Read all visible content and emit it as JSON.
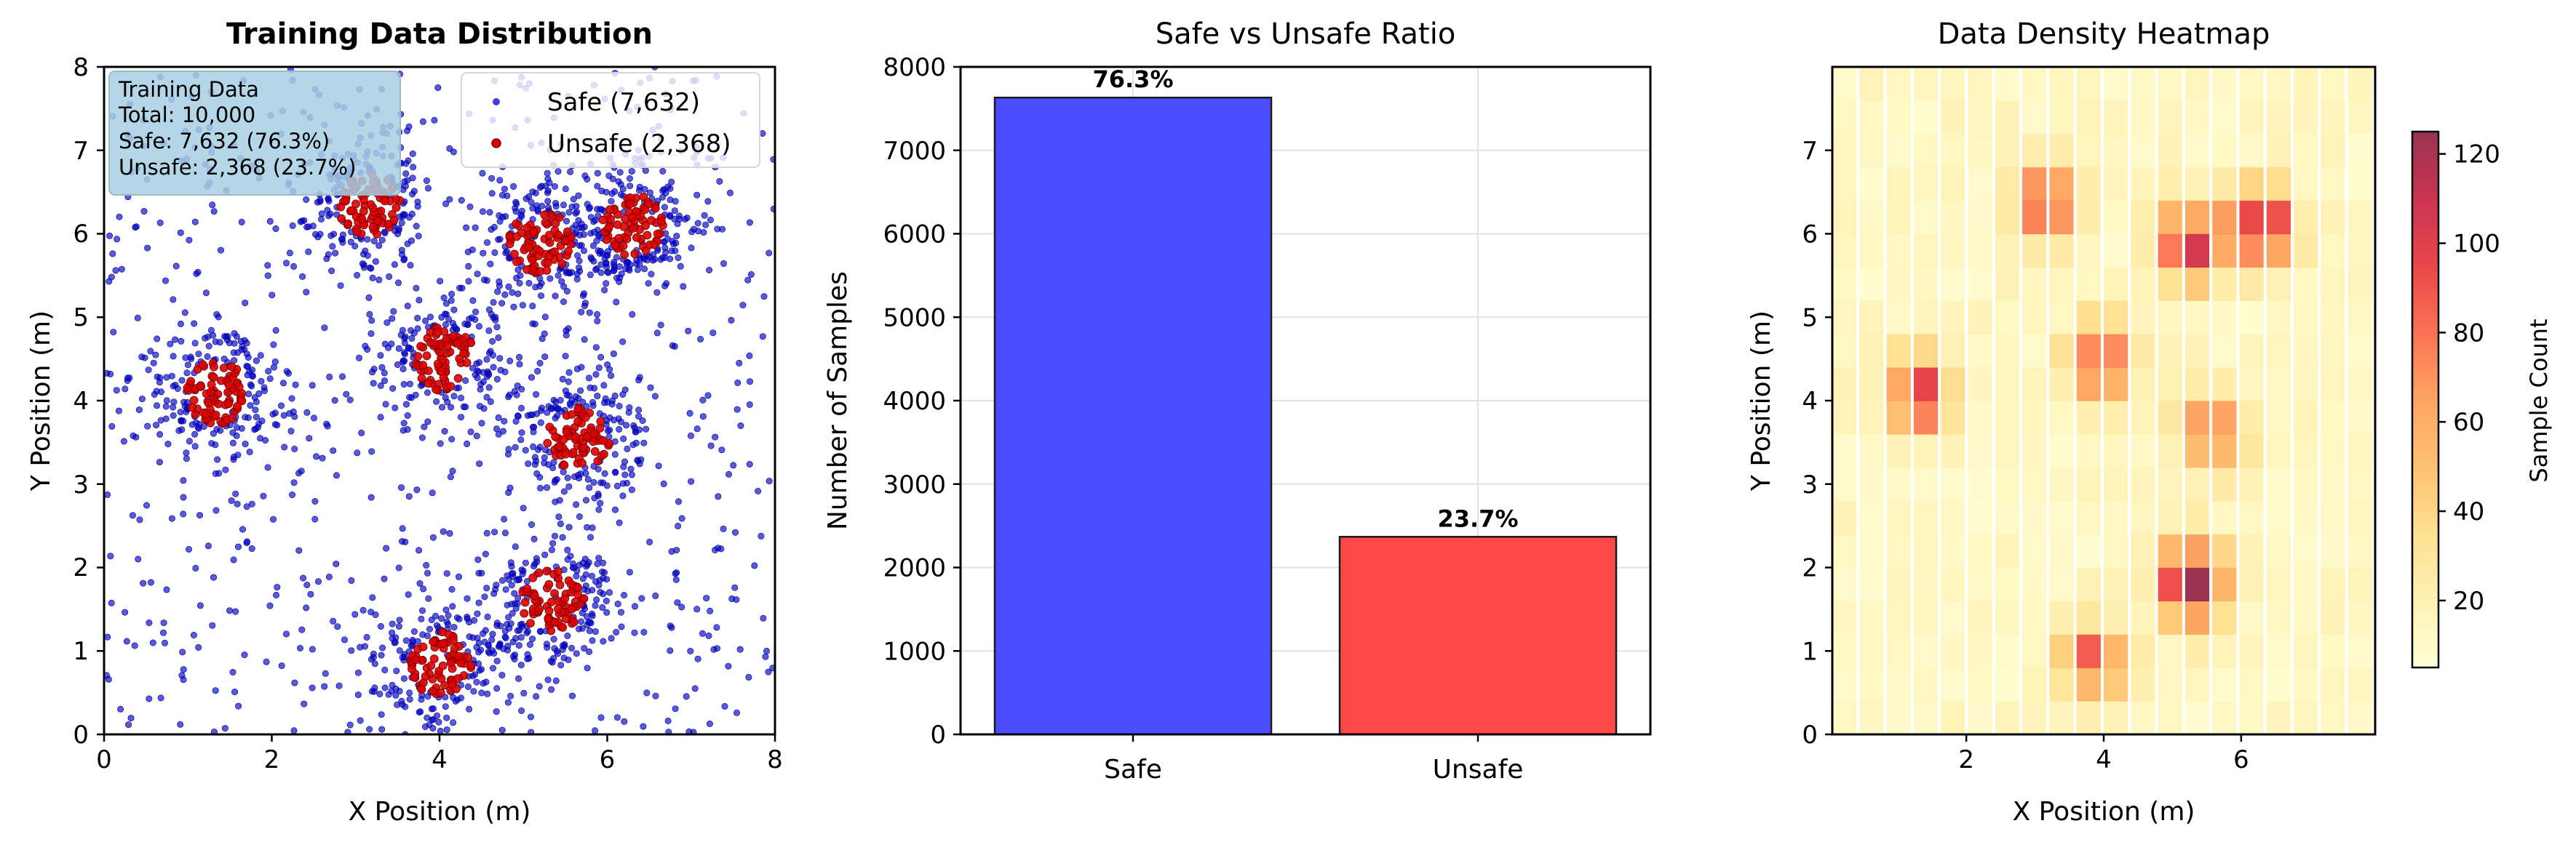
{
  "figure": {
    "panel1": {
      "title": "Training Data Distribution",
      "xlabel": "X Position (m)",
      "ylabel": "Y Position (m)",
      "xticks": [
        "0",
        "2",
        "4",
        "6",
        "8"
      ],
      "yticks": [
        "0",
        "1",
        "2",
        "3",
        "4",
        "5",
        "6",
        "7",
        "8"
      ],
      "infobox": [
        "Training Data",
        "Total: 10,000",
        "Safe: 7,632 (76.3%)",
        "Unsafe: 2,368 (23.7%)"
      ],
      "legend": [
        "Safe (7,632)",
        "Unsafe (2,368)"
      ]
    },
    "panel2": {
      "title": "Safe vs Unsafe Ratio",
      "ylabel": "Number of Samples",
      "yticks": [
        "0",
        "1000",
        "2000",
        "3000",
        "4000",
        "5000",
        "6000",
        "7000",
        "8000"
      ],
      "categories": [
        "Safe",
        "Unsafe"
      ],
      "pct_labels": [
        "76.3%",
        "23.7%"
      ]
    },
    "panel3": {
      "title": "Data Density Heatmap",
      "xlabel": "X Position (m)",
      "ylabel": "Y Position (m)",
      "xticks": [
        "2",
        "4",
        "6"
      ],
      "yticks": [
        "0",
        "1",
        "2",
        "3",
        "4",
        "5",
        "6",
        "7"
      ],
      "colorbar_label": "Sample Count",
      "colorbar_ticks": [
        "20",
        "40",
        "60",
        "80",
        "100",
        "120"
      ]
    }
  },
  "colors": {
    "safe": "#0000cc",
    "unsafe": "#dd0000",
    "bar_safe": "#4b4bff",
    "bar_unsafe": "#ff4848",
    "infobox": "#a8cfe3"
  },
  "chart_data": [
    {
      "type": "scatter",
      "title": "Training Data Distribution",
      "xlabel": "X Position (m)",
      "ylabel": "Y Position (m)",
      "xlim": [
        0,
        8
      ],
      "ylim": [
        0,
        8
      ],
      "grid": false,
      "legend_position": "top-right",
      "series": [
        {
          "name": "Safe (7,632)",
          "count": 7632,
          "color": "#0000cc"
        },
        {
          "name": "Unsafe (2,368)",
          "count": 2368,
          "color": "#dd0000"
        }
      ],
      "obstacle_centers": [
        [
          1.35,
          4.1
        ],
        [
          3.15,
          6.35
        ],
        [
          4.05,
          4.5
        ],
        [
          5.2,
          5.9
        ],
        [
          6.3,
          6.1
        ],
        [
          5.65,
          3.55
        ],
        [
          5.35,
          1.6
        ],
        [
          4.0,
          0.85
        ]
      ]
    },
    {
      "type": "bar",
      "title": "Safe vs Unsafe Ratio",
      "categories": [
        "Safe",
        "Unsafe"
      ],
      "values": [
        7632,
        2368
      ],
      "data_labels": [
        "76.3%",
        "23.7%"
      ],
      "ylabel": "Number of Samples",
      "ylim": [
        0,
        8000
      ],
      "grid": true
    },
    {
      "type": "heatmap",
      "title": "Data Density Heatmap",
      "xlabel": "X Position (m)",
      "ylabel": "Y Position (m)",
      "xlim": [
        0.05,
        7.95
      ],
      "ylim": [
        0,
        8
      ],
      "colorbar_label": "Sample Count",
      "colorbar_range": [
        5,
        125
      ],
      "grid_cells": [
        20,
        20
      ],
      "hotspots": [
        {
          "x": 1.3,
          "y": 4.1,
          "peak": 85
        },
        {
          "x": 3.2,
          "y": 6.4,
          "peak": 85
        },
        {
          "x": 4.0,
          "y": 4.5,
          "peak": 80
        },
        {
          "x": 5.3,
          "y": 5.9,
          "peak": 95
        },
        {
          "x": 6.3,
          "y": 6.1,
          "peak": 110
        },
        {
          "x": 5.6,
          "y": 3.6,
          "peak": 75
        },
        {
          "x": 5.3,
          "y": 1.8,
          "peak": 120
        },
        {
          "x": 3.9,
          "y": 0.9,
          "peak": 75
        }
      ]
    }
  ]
}
